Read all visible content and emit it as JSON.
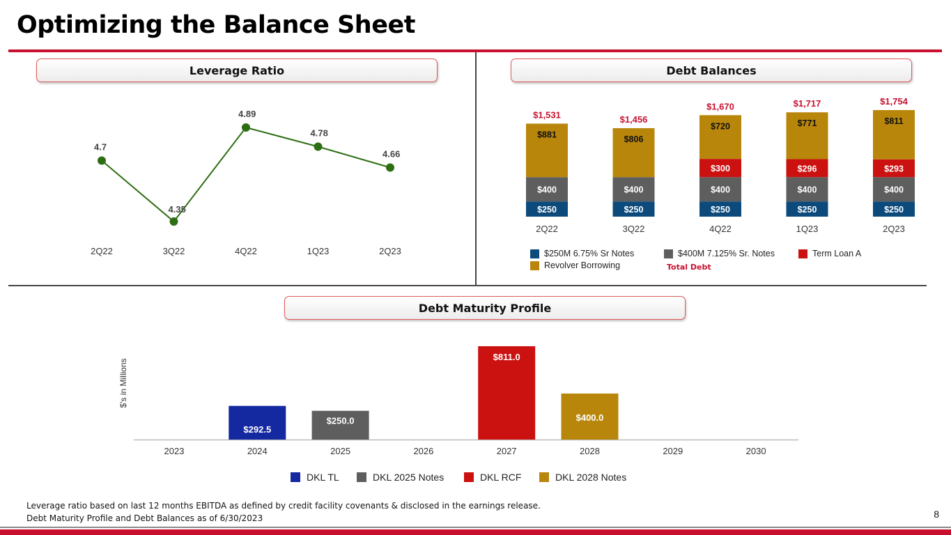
{
  "page": {
    "title": "Optimizing the Balance Sheet",
    "page_number": "8",
    "footnotes": [
      "Leverage ratio based on last 12 months EBITDA as defined by credit facility covenants & disclosed in the earnings release.",
      "Debt Maturity Profile and Debt Balances as of 6/30/2023"
    ],
    "colors": {
      "brand_red": "#c8102e",
      "line_green": "#2d6e12",
      "navy": "#0c4a7c",
      "gray": "#5e5e5e",
      "gold": "#b8860b",
      "red": "#cc1111",
      "blue": "#1428a0"
    }
  },
  "chart_data": [
    {
      "id": "leverage",
      "type": "line",
      "title": "Leverage Ratio",
      "categories": [
        "2Q22",
        "3Q22",
        "4Q22",
        "1Q23",
        "2Q23"
      ],
      "values": [
        4.7,
        4.35,
        4.89,
        4.78,
        4.66
      ],
      "labels": [
        "4.7",
        "4.35",
        "4.89",
        "4.78",
        "4.66"
      ],
      "ylim": [
        4.3,
        4.95
      ],
      "color": "#2d6e12"
    },
    {
      "id": "debt_balances",
      "type": "bar",
      "stacked": true,
      "title": "Debt Balances",
      "categories": [
        "2Q22",
        "3Q22",
        "4Q22",
        "1Q23",
        "2Q23"
      ],
      "series": [
        {
          "name": "$250M 6.75% Sr Notes",
          "color": "#0c4a7c",
          "values": [
            250,
            250,
            250,
            250,
            250
          ],
          "labels": [
            "$250",
            "$250",
            "$250",
            "$250",
            "$250"
          ]
        },
        {
          "name": "$400M 7.125% Sr. Notes",
          "color": "#5e5e5e",
          "values": [
            400,
            400,
            400,
            400,
            400
          ],
          "labels": [
            "$400",
            "$400",
            "$400",
            "$400",
            "$400"
          ]
        },
        {
          "name": "Term Loan A",
          "color": "#cc1111",
          "values": [
            0,
            0,
            300,
            296,
            293
          ],
          "labels": [
            "",
            "",
            "$300",
            "$296",
            "$293"
          ]
        },
        {
          "name": "Revolver Borrowing",
          "color": "#b8860b",
          "values": [
            881,
            806,
            720,
            771,
            811
          ],
          "labels": [
            "$881",
            "$806",
            "$720",
            "$771",
            "$811"
          ]
        }
      ],
      "totals": [
        1531,
        1456,
        1670,
        1717,
        1754
      ],
      "total_labels": [
        "$1,531",
        "$1,456",
        "$1,670",
        "$1,717",
        "$1,754"
      ],
      "total_legend": "Total Debt"
    },
    {
      "id": "maturity",
      "type": "bar",
      "title": "Debt Maturity Profile",
      "ylabel": "$'s in Millions",
      "categories": [
        "2023",
        "2024",
        "2025",
        "2026",
        "2027",
        "2028",
        "2029",
        "2030"
      ],
      "series": [
        {
          "name": "DKL TL",
          "color": "#1428a0",
          "values": [
            0,
            292.5,
            0,
            0,
            0,
            0,
            0,
            0
          ]
        },
        {
          "name": "DKL 2025 Notes",
          "color": "#5e5e5e",
          "values": [
            0,
            0,
            250.0,
            0,
            0,
            0,
            0,
            0
          ]
        },
        {
          "name": "DKL RCF",
          "color": "#cc1111",
          "values": [
            0,
            0,
            0,
            0,
            811.0,
            0,
            0,
            0
          ]
        },
        {
          "name": "DKL 2028 Notes",
          "color": "#b8860b",
          "values": [
            0,
            0,
            0,
            0,
            0,
            400.0,
            0,
            0
          ]
        }
      ],
      "bar_labels": [
        "",
        "$292.5",
        "$250.0",
        "",
        "$811.0",
        "$400.0",
        "",
        ""
      ]
    }
  ]
}
